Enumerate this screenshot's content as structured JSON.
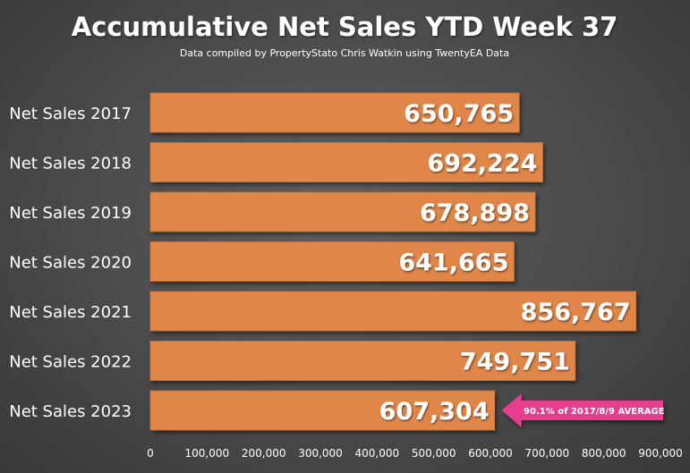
{
  "chart_data": {
    "type": "bar",
    "orientation": "horizontal",
    "title": "Accumulative Net Sales YTD Week 37",
    "subtitle": "Data compiled by PropertyStato Chris Watkin using TwentyEA Data",
    "categories": [
      "Net Sales 2017",
      "Net Sales 2018",
      "Net Sales 2019",
      "Net Sales 2020",
      "Net Sales 2021",
      "Net Sales 2022",
      "Net Sales 2023"
    ],
    "values": [
      650765,
      692224,
      678898,
      641665,
      856767,
      749751,
      607304
    ],
    "value_labels": [
      "650,765",
      "692,224",
      "678,898",
      "641,665",
      "856,767",
      "749,751",
      "607,304"
    ],
    "xlim": [
      0,
      900000
    ],
    "x_ticks": [
      0,
      100000,
      200000,
      300000,
      400000,
      500000,
      600000,
      700000,
      800000,
      900000
    ],
    "x_tick_labels": [
      "0",
      "100,000",
      "200,000",
      "300,000",
      "400,000",
      "500,000",
      "600,000",
      "700,000",
      "800,000",
      "900,000"
    ],
    "grid": false,
    "legend": "none",
    "annotation": {
      "text": "90.1% of 2017/8/9 AVERAGE",
      "target_category": "Net Sales 2023"
    },
    "colors": {
      "bar": "#E0864A",
      "callout": "#E63C8F",
      "text": "#FFFFFF"
    }
  }
}
